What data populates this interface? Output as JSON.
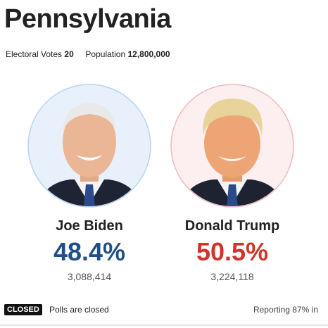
{
  "header": {
    "title": "Pennsylvania"
  },
  "stats": [
    {
      "label": "Electoral Votes",
      "value": "20"
    },
    {
      "label": "Population",
      "value": "12,800,000"
    }
  ],
  "candidates": [
    {
      "name": "Joe Biden",
      "percent": "48.4%",
      "votes": "3,088,414"
    },
    {
      "name": "Donald Trump",
      "percent": "50.5%",
      "votes": "3,224,118"
    }
  ],
  "footer": {
    "badge": "CLOSED",
    "status": "Polls are closed",
    "reporting": "Reporting 87% in"
  }
}
